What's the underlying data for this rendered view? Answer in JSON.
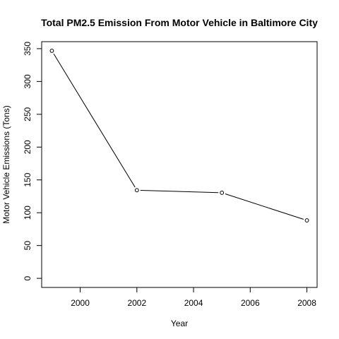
{
  "chart_data": {
    "type": "line",
    "title": "Total PM2.5 Emission From Motor Vehicle in Baltimore City",
    "xlabel": "Year",
    "ylabel": "Motor Vehicle Emissions (Tons)",
    "x": [
      1999,
      2002,
      2005,
      2008
    ],
    "y": [
      346.8,
      134.3,
      130.4,
      88.3
    ],
    "xlim": [
      1998.64,
      2008.36
    ],
    "ylim": [
      -13.87,
      360.67
    ],
    "xticks": [
      2000,
      2002,
      2004,
      2006,
      2008
    ],
    "yticks": [
      0,
      50,
      100,
      150,
      200,
      250,
      300,
      350
    ],
    "grid": false,
    "legend": "none",
    "marker": "open-circle",
    "line_color": "#000000"
  }
}
